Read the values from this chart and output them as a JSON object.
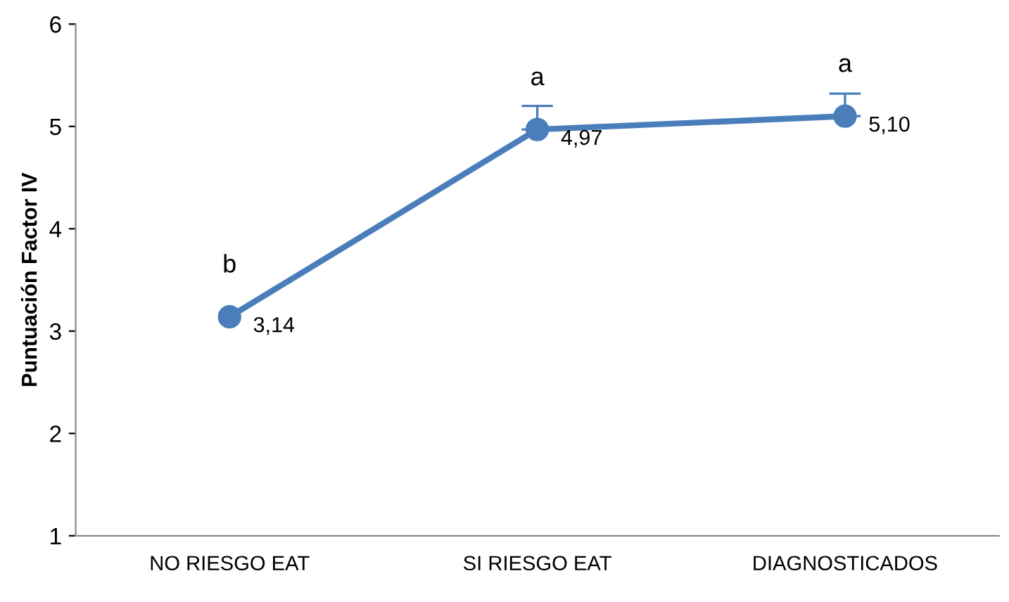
{
  "chart_data": {
    "type": "line",
    "ylabel": "Puntuación Factor IV",
    "categories": [
      "NO RIESGO EAT",
      "SI RIESGO EAT",
      "DIAGNOSTICADOS"
    ],
    "series": [
      {
        "color": "#4a7ebb",
        "values": [
          3.14,
          4.97,
          5.1
        ],
        "value_labels": [
          "3,14",
          "4,97",
          "5,10"
        ],
        "errors": [
          null,
          [
            4.97,
            5.2
          ],
          [
            5.1,
            5.32
          ]
        ]
      }
    ],
    "ylim": [
      1,
      6
    ],
    "yticks": [
      1,
      2,
      3,
      4,
      5,
      6
    ],
    "grid": false,
    "marker": "circle",
    "line_style": "solid",
    "annotations": [
      {
        "text": "b",
        "x": "NO RIESGO EAT",
        "y": 3.14
      },
      {
        "text": "a",
        "x": "SI RIESGO EAT",
        "y": 4.97
      },
      {
        "text": "a",
        "x": "DIAGNOSTICADOS",
        "y": 5.1
      }
    ]
  }
}
